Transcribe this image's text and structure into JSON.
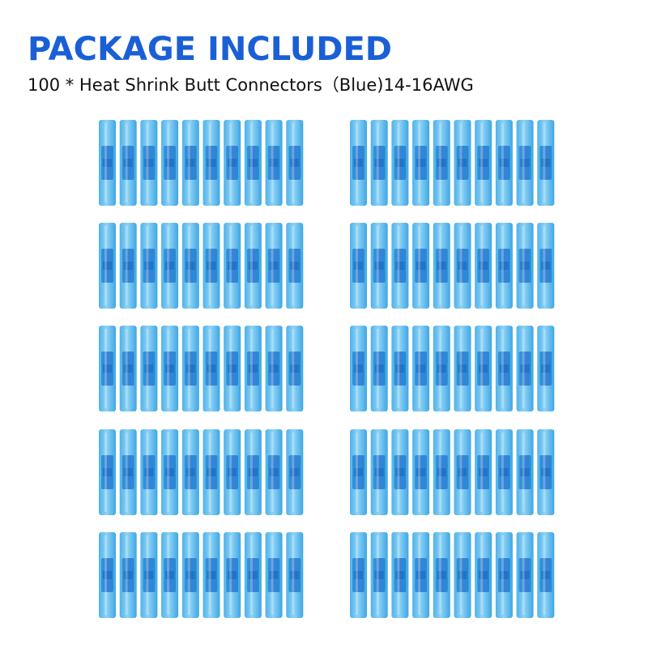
{
  "header": {
    "title": "PACKAGE INCLUDED",
    "subtitle": "100 * Heat Shrink Butt Connectors（Blue)14-16AWG"
  }
}
